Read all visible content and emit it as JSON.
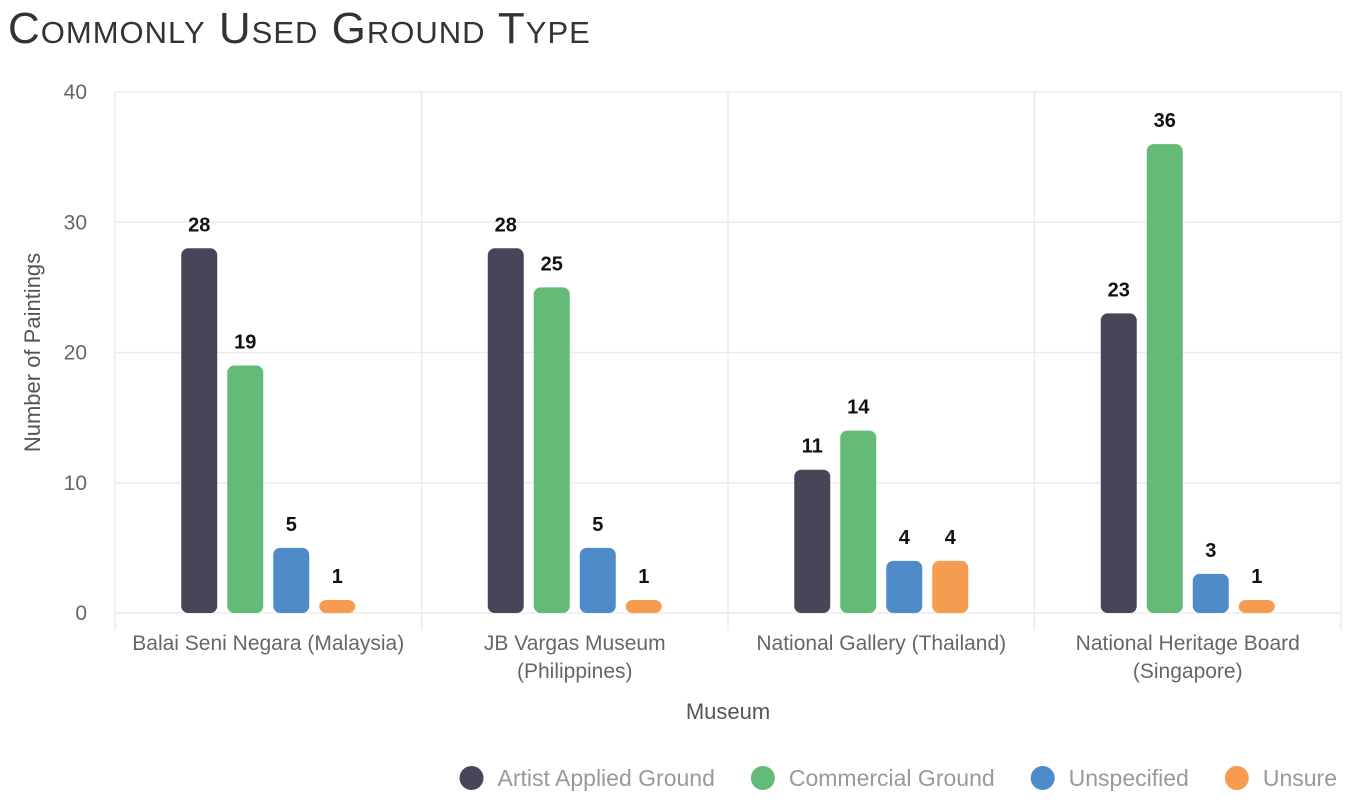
{
  "chart_data": {
    "type": "bar",
    "title": "Commonly Used Ground Type",
    "xlabel": "Museum",
    "ylabel": "Number of Paintings",
    "ylim": [
      0,
      40
    ],
    "yticks": [
      "0",
      "10",
      "20",
      "30",
      "40"
    ],
    "categories": [
      [
        "Balai Seni Negara (Malaysia)"
      ],
      [
        "JB Vargas Museum",
        "(Philippines)"
      ],
      [
        "National Gallery (Thailand)"
      ],
      [
        "National Heritage Board",
        "(Singapore)"
      ]
    ],
    "series": [
      {
        "name": "Artist Applied Ground",
        "color": "#474658",
        "values": [
          28,
          28,
          11,
          23
        ]
      },
      {
        "name": "Commercial Ground",
        "color": "#63bb77",
        "values": [
          19,
          25,
          14,
          36
        ]
      },
      {
        "name": "Unspecified",
        "color": "#4f8bc9",
        "values": [
          5,
          5,
          4,
          3
        ]
      },
      {
        "name": "Unsure",
        "color": "#f59c51",
        "values": [
          1,
          1,
          4,
          1
        ]
      }
    ],
    "grid": true,
    "legend_position": "bottom-right",
    "data_labels": true
  }
}
